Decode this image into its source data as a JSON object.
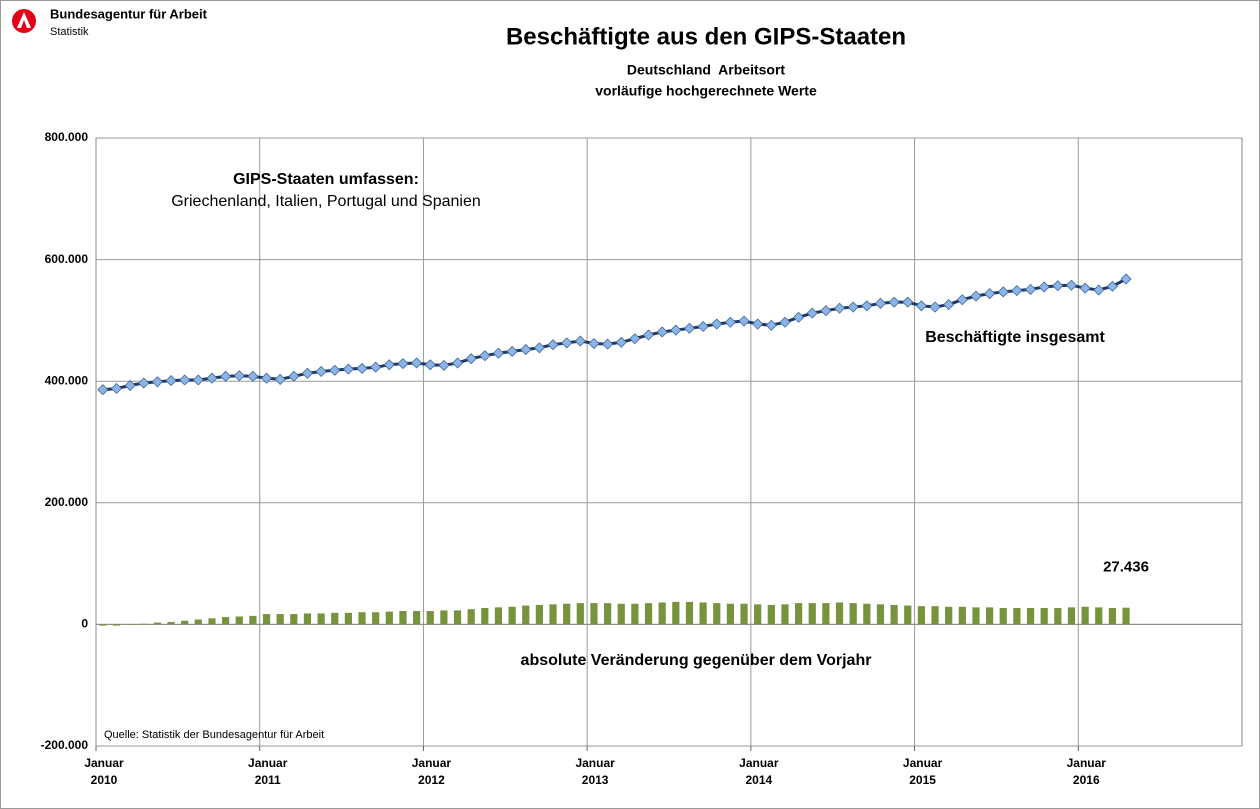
{
  "header": {
    "org": "Bundesagentur für Arbeit",
    "unit": "Statistik"
  },
  "chart_data": {
    "type": "combo",
    "title": "Beschäftigte aus den GIPS-Staaten",
    "subtitle": [
      "Deutschland  Arbeitsort",
      "vorläufige hochgerechnete Werte"
    ],
    "annotations": [
      "GIPS-Staaten umfassen:",
      "Griechenland, Italien, Portugal und Spanien"
    ],
    "source": "Quelle: Statistik der Bundesagentur für Arbeit",
    "categories": [
      "Januar 2010",
      null,
      null,
      null,
      null,
      null,
      null,
      null,
      null,
      null,
      null,
      null,
      "Januar 2011",
      null,
      null,
      null,
      null,
      null,
      null,
      null,
      null,
      null,
      null,
      null,
      "Januar 2012",
      null,
      null,
      null,
      null,
      null,
      null,
      null,
      null,
      null,
      null,
      null,
      "Januar 2013",
      null,
      null,
      null,
      null,
      null,
      null,
      null,
      null,
      null,
      null,
      null,
      "Januar 2014",
      null,
      null,
      null,
      null,
      null,
      null,
      null,
      null,
      null,
      null,
      null,
      "Januar 2015",
      null,
      null,
      null,
      null,
      null,
      null,
      null,
      null,
      null,
      null,
      null,
      "Januar 2016",
      null,
      null,
      null,
      null,
      null,
      null,
      null,
      null,
      null,
      null,
      null
    ],
    "ylim": [
      -200000,
      800000
    ],
    "yticks": [
      {
        "value": -200000,
        "label": "-200.000"
      },
      0,
      {
        "value": 200000,
        "label": "200.000"
      },
      {
        "value": 400000,
        "label": "400.000"
      },
      {
        "value": 600000,
        "label": "600.000"
      },
      {
        "value": 800000,
        "label": "800.000"
      }
    ],
    "grid": true,
    "series": [
      {
        "name": "Beschäftigte insgesamt",
        "type": "line",
        "color": "#1f3864",
        "marker_color": "#8db4e2",
        "values": [
          386000,
          388000,
          393000,
          397000,
          399000,
          401000,
          402000,
          402000,
          405000,
          408000,
          409000,
          408000,
          405000,
          403000,
          408000,
          413000,
          416000,
          418000,
          420000,
          421000,
          423000,
          427000,
          429000,
          430000,
          427000,
          426000,
          430000,
          437000,
          442000,
          446000,
          449000,
          452000,
          455000,
          460000,
          463000,
          466000,
          462000,
          461000,
          464000,
          470000,
          476000,
          481000,
          484000,
          487000,
          490000,
          494000,
          497000,
          499000,
          494000,
          492000,
          497000,
          505000,
          512000,
          516000,
          520000,
          522000,
          524000,
          528000,
          530000,
          530000,
          524000,
          522000,
          526000,
          534000,
          540000,
          544000,
          547000,
          549000,
          551000,
          555000,
          557000,
          558000,
          553000,
          550000,
          556000,
          568000,
          null,
          null,
          null,
          null,
          null,
          null,
          null,
          null
        ]
      },
      {
        "name": "absolute Veränderung gegenüber dem Vorjahr",
        "type": "bar",
        "color": "#77933c",
        "values": [
          -2000,
          -2000,
          -1000,
          1000,
          3000,
          4000,
          6000,
          8000,
          10000,
          12000,
          13000,
          14000,
          17000,
          17000,
          17000,
          18000,
          18000,
          19000,
          19000,
          20000,
          20000,
          21000,
          22000,
          22000,
          22000,
          23000,
          23000,
          25000,
          27000,
          28000,
          29000,
          31000,
          32000,
          33000,
          34000,
          35000,
          35000,
          35000,
          34000,
          34000,
          35000,
          36000,
          37000,
          37000,
          36000,
          35000,
          34000,
          34000,
          33000,
          32000,
          33000,
          35000,
          35000,
          35000,
          36000,
          35000,
          34000,
          33000,
          32000,
          31000,
          30000,
          30000,
          29000,
          29000,
          28000,
          28000,
          27000,
          27000,
          27000,
          27000,
          27000,
          28000,
          29000,
          28000,
          27000,
          27436,
          null,
          null,
          null,
          null,
          null,
          null,
          null,
          null
        ],
        "value_labels": [
          null,
          null,
          null,
          null,
          null,
          null,
          null,
          null,
          null,
          null,
          null,
          null,
          null,
          null,
          null,
          null,
          null,
          null,
          null,
          null,
          null,
          null,
          null,
          null,
          null,
          null,
          null,
          null,
          null,
          null,
          null,
          null,
          null,
          null,
          null,
          null,
          null,
          null,
          null,
          null,
          null,
          null,
          null,
          null,
          null,
          null,
          null,
          null,
          null,
          null,
          null,
          null,
          null,
          null,
          null,
          null,
          null,
          null,
          null,
          null,
          null,
          null,
          null,
          null,
          null,
          null,
          null,
          null,
          null,
          null,
          null,
          null,
          null,
          null,
          null,
          "27.436",
          null,
          null,
          null,
          null,
          null,
          null,
          null,
          null
        ]
      }
    ]
  }
}
